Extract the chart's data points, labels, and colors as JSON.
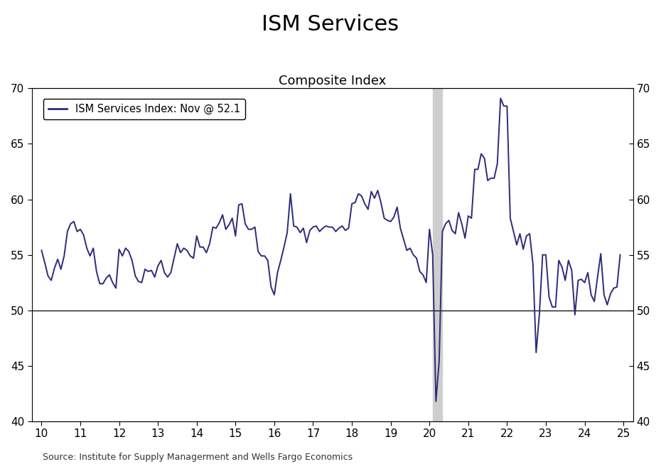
{
  "title": "ISM Services",
  "subtitle": "Composite Index",
  "legend_label": "ISM Services Index: Nov @ 52.1",
  "source": "Source: Institute for Supply Managerment and Wells Fargo Economics",
  "line_color": "#2D2B7A",
  "background_color": "#FFFFFF",
  "shade_xmin": 20.083,
  "shade_xmax": 20.33,
  "shade_color": "#CECECE",
  "hline_y": 50,
  "ylim": [
    40,
    70
  ],
  "xlim": [
    9.75,
    25.25
  ],
  "yticks": [
    40,
    45,
    50,
    55,
    60,
    65,
    70
  ],
  "xticks": [
    10,
    11,
    12,
    13,
    14,
    15,
    16,
    17,
    18,
    19,
    20,
    21,
    22,
    23,
    24,
    25
  ],
  "data_x": [
    10.0,
    10.083,
    10.167,
    10.25,
    10.333,
    10.417,
    10.5,
    10.583,
    10.667,
    10.75,
    10.833,
    10.917,
    11.0,
    11.083,
    11.167,
    11.25,
    11.333,
    11.417,
    11.5,
    11.583,
    11.667,
    11.75,
    11.833,
    11.917,
    12.0,
    12.083,
    12.167,
    12.25,
    12.333,
    12.417,
    12.5,
    12.583,
    12.667,
    12.75,
    12.833,
    12.917,
    13.0,
    13.083,
    13.167,
    13.25,
    13.333,
    13.417,
    13.5,
    13.583,
    13.667,
    13.75,
    13.833,
    13.917,
    14.0,
    14.083,
    14.167,
    14.25,
    14.333,
    14.417,
    14.5,
    14.583,
    14.667,
    14.75,
    14.833,
    14.917,
    15.0,
    15.083,
    15.167,
    15.25,
    15.333,
    15.417,
    15.5,
    15.583,
    15.667,
    15.75,
    15.833,
    15.917,
    16.0,
    16.083,
    16.167,
    16.25,
    16.333,
    16.417,
    16.5,
    16.583,
    16.667,
    16.75,
    16.833,
    16.917,
    17.0,
    17.083,
    17.167,
    17.25,
    17.333,
    17.417,
    17.5,
    17.583,
    17.667,
    17.75,
    17.833,
    17.917,
    18.0,
    18.083,
    18.167,
    18.25,
    18.333,
    18.417,
    18.5,
    18.583,
    18.667,
    18.75,
    18.833,
    18.917,
    19.0,
    19.083,
    19.167,
    19.25,
    19.333,
    19.417,
    19.5,
    19.583,
    19.667,
    19.75,
    19.833,
    19.917,
    20.0,
    20.083,
    20.167,
    20.25,
    20.333,
    20.417,
    20.5,
    20.583,
    20.667,
    20.75,
    20.833,
    20.917,
    21.0,
    21.083,
    21.167,
    21.25,
    21.333,
    21.417,
    21.5,
    21.583,
    21.667,
    21.75,
    21.833,
    21.917,
    22.0,
    22.083,
    22.167,
    22.25,
    22.333,
    22.417,
    22.5,
    22.583,
    22.667,
    22.75,
    22.833,
    22.917,
    23.0,
    23.083,
    23.167,
    23.25,
    23.333,
    23.417,
    23.5,
    23.583,
    23.667,
    23.75,
    23.833,
    23.917,
    24.0,
    24.083,
    24.167,
    24.25,
    24.333,
    24.417,
    24.5,
    24.583,
    24.667,
    24.75,
    24.833,
    24.917
  ],
  "data_y": [
    55.4,
    54.3,
    53.1,
    52.7,
    53.8,
    54.6,
    53.7,
    54.9,
    57.1,
    57.8,
    58.0,
    57.1,
    57.3,
    56.8,
    55.6,
    54.9,
    55.6,
    53.5,
    52.4,
    52.4,
    52.9,
    53.2,
    52.5,
    52.0,
    55.5,
    54.9,
    55.6,
    55.3,
    54.5,
    53.1,
    52.6,
    52.5,
    53.7,
    53.5,
    53.6,
    53.0,
    54.0,
    54.5,
    53.4,
    53.0,
    53.4,
    54.7,
    56.0,
    55.2,
    55.6,
    55.4,
    54.9,
    54.7,
    56.7,
    55.7,
    55.7,
    55.2,
    56.0,
    57.5,
    57.4,
    57.9,
    58.6,
    57.3,
    57.7,
    58.3,
    56.7,
    59.5,
    59.6,
    57.8,
    57.3,
    57.3,
    57.5,
    55.3,
    54.9,
    54.9,
    54.5,
    52.1,
    51.4,
    53.4,
    54.5,
    55.7,
    57.0,
    60.5,
    57.6,
    57.5,
    57.0,
    57.4,
    56.1,
    57.2,
    57.5,
    57.6,
    57.1,
    57.4,
    57.6,
    57.5,
    57.5,
    57.1,
    57.4,
    57.6,
    57.2,
    57.4,
    59.6,
    59.7,
    60.5,
    60.3,
    59.6,
    59.1,
    60.7,
    60.1,
    60.8,
    59.7,
    58.3,
    58.1,
    58.0,
    58.4,
    59.3,
    57.4,
    56.4,
    55.4,
    55.6,
    55.0,
    54.7,
    53.5,
    53.2,
    52.5,
    57.3,
    55.0,
    41.8,
    45.4,
    57.1,
    57.8,
    58.1,
    57.2,
    56.9,
    58.8,
    57.8,
    56.5,
    58.5,
    58.3,
    62.7,
    62.7,
    64.1,
    63.7,
    61.7,
    61.9,
    61.9,
    63.2,
    69.1,
    68.4,
    68.4,
    58.3,
    57.1,
    55.9,
    56.9,
    55.5,
    56.7,
    56.9,
    54.2,
    46.2,
    49.6,
    55.0,
    55.0,
    51.2,
    50.3,
    50.3,
    54.5,
    53.9,
    52.7,
    54.5,
    53.6,
    49.6,
    52.7,
    52.8,
    52.5,
    53.4,
    51.4,
    50.8,
    53.0,
    55.1,
    51.4,
    50.5,
    51.5,
    52.0,
    52.1,
    55.0
  ]
}
